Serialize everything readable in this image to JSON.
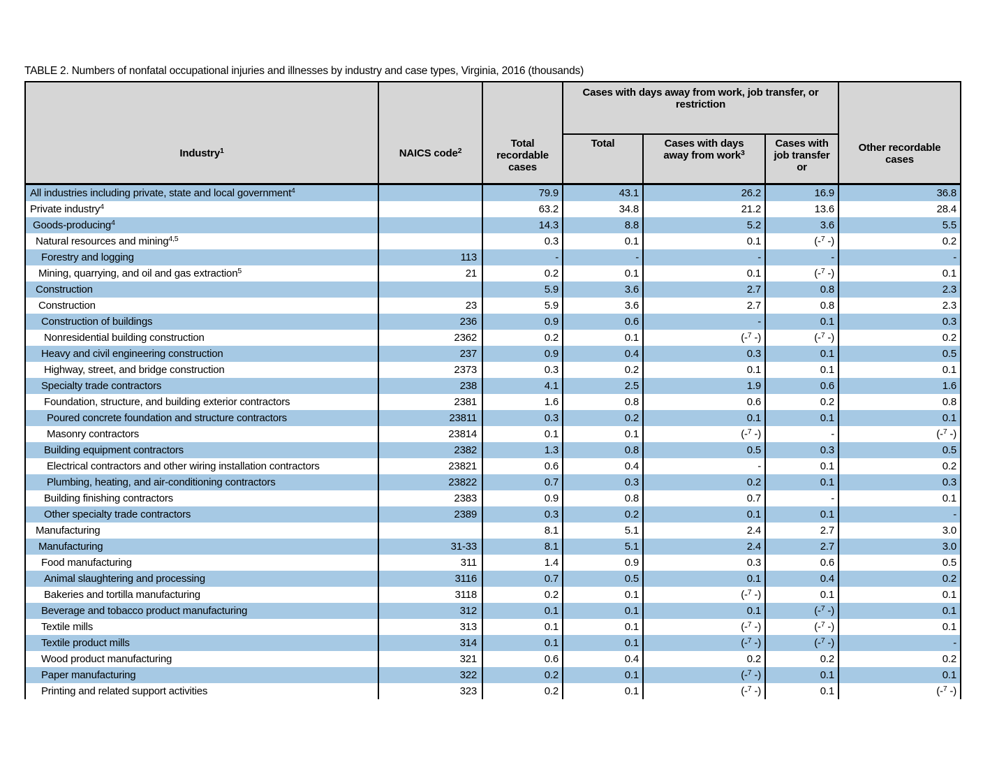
{
  "title": "TABLE 2. Numbers of nonfatal occupational injuries and illnesses by industry and case types, Virginia, 2016 (thousands)",
  "colors": {
    "stripe_blue": "#a6c9e4",
    "header_gray": "#d6d6d6",
    "border": "#000000",
    "background": "#ffffff"
  },
  "table": {
    "columns": {
      "industry": "Industry^{1}",
      "naics": "NAICS code^{2}",
      "total_recordable": "Total recordable cases",
      "group": "Cases with days away from work, job transfer, or restriction",
      "group_sub": [
        "Total",
        "Cases with days away from work^{3}",
        "Cases with job transfer or"
      ],
      "other": "Other recordable cases"
    },
    "rows": [
      {
        "label": "All industries including private, state and local government^{4}",
        "indent": 0,
        "naics": "",
        "values": [
          "79.9",
          "43.1",
          "26.2",
          "16.9",
          "36.8"
        ]
      },
      {
        "label": "Private industry^{4}",
        "indent": 0,
        "naics": "",
        "values": [
          "63.2",
          "34.8",
          "21.2",
          "13.6",
          "28.4"
        ]
      },
      {
        "label": "Goods-producing^{4}",
        "indent": 1,
        "naics": "",
        "values": [
          "14.3",
          "8.8",
          "5.2",
          "3.6",
          "5.5"
        ]
      },
      {
        "label": "Natural resources and mining^{4,5}",
        "indent": 2,
        "naics": "",
        "values": [
          "0.3",
          "0.1",
          "0.1",
          "(-^{7} -)",
          "0.2"
        ]
      },
      {
        "label": "Forestry and logging",
        "indent": 4,
        "naics": "113",
        "values": [
          "-",
          "-",
          "-",
          "-",
          "-"
        ]
      },
      {
        "label": "Mining, quarrying, and oil and gas extraction^{5}",
        "indent": 3,
        "naics": "21",
        "values": [
          "0.2",
          "0.1",
          "0.1",
          "(-^{7} -)",
          "0.1"
        ]
      },
      {
        "label": "Construction",
        "indent": 2,
        "naics": "",
        "values": [
          "5.9",
          "3.6",
          "2.7",
          "0.8",
          "2.3"
        ]
      },
      {
        "label": "Construction",
        "indent": 3,
        "naics": "23",
        "values": [
          "5.9",
          "3.6",
          "2.7",
          "0.8",
          "2.3"
        ]
      },
      {
        "label": "Construction of buildings",
        "indent": 4,
        "naics": "236",
        "values": [
          "0.9",
          "0.6",
          "-",
          "0.1",
          "0.3"
        ]
      },
      {
        "label": "Nonresidential building construction",
        "indent": 5,
        "naics": "2362",
        "values": [
          "0.2",
          "0.1",
          "(-^{7} -)",
          "(-^{7} -)",
          "0.2"
        ]
      },
      {
        "label": "Heavy and civil engineering construction",
        "indent": 4,
        "naics": "237",
        "values": [
          "0.9",
          "0.4",
          "0.3",
          "0.1",
          "0.5"
        ]
      },
      {
        "label": "Highway, street, and bridge construction",
        "indent": 5,
        "naics": "2373",
        "values": [
          "0.3",
          "0.2",
          "0.1",
          "0.1",
          "0.1"
        ]
      },
      {
        "label": "Specialty trade contractors",
        "indent": 4,
        "naics": "238",
        "values": [
          "4.1",
          "2.5",
          "1.9",
          "0.6",
          "1.6"
        ]
      },
      {
        "label": "Foundation, structure, and building exterior contractors",
        "indent": 5,
        "naics": "2381",
        "values": [
          "1.6",
          "0.8",
          "0.6",
          "0.2",
          "0.8"
        ]
      },
      {
        "label": "Poured concrete foundation and structure contractors",
        "indent": 6,
        "naics": "23811",
        "values": [
          "0.3",
          "0.2",
          "0.1",
          "0.1",
          "0.1"
        ]
      },
      {
        "label": "Masonry contractors",
        "indent": 6,
        "naics": "23814",
        "values": [
          "0.1",
          "0.1",
          "(-^{7} -)",
          "-",
          "(-^{7} -)"
        ]
      },
      {
        "label": "Building equipment contractors",
        "indent": 5,
        "naics": "2382",
        "values": [
          "1.3",
          "0.8",
          "0.5",
          "0.3",
          "0.5"
        ]
      },
      {
        "label": "Electrical contractors and other wiring installation contractors",
        "indent": 6,
        "naics": "23821",
        "values": [
          "0.6",
          "0.4",
          "-",
          "0.1",
          "0.2"
        ]
      },
      {
        "label": "Plumbing, heating, and air-conditioning contractors",
        "indent": 6,
        "naics": "23822",
        "values": [
          "0.7",
          "0.3",
          "0.2",
          "0.1",
          "0.3"
        ]
      },
      {
        "label": "Building finishing contractors",
        "indent": 5,
        "naics": "2383",
        "values": [
          "0.9",
          "0.8",
          "0.7",
          "-",
          "0.1"
        ]
      },
      {
        "label": "Other specialty trade contractors",
        "indent": 5,
        "naics": "2389",
        "values": [
          "0.3",
          "0.2",
          "0.1",
          "0.1",
          "-"
        ]
      },
      {
        "label": "Manufacturing",
        "indent": 2,
        "naics": "",
        "values": [
          "8.1",
          "5.1",
          "2.4",
          "2.7",
          "3.0"
        ]
      },
      {
        "label": "Manufacturing",
        "indent": 3,
        "naics": "31-33",
        "values": [
          "8.1",
          "5.1",
          "2.4",
          "2.7",
          "3.0"
        ]
      },
      {
        "label": "Food manufacturing",
        "indent": 4,
        "naics": "311",
        "values": [
          "1.4",
          "0.9",
          "0.3",
          "0.6",
          "0.5"
        ]
      },
      {
        "label": "Animal slaughtering and processing",
        "indent": 5,
        "naics": "3116",
        "values": [
          "0.7",
          "0.5",
          "0.1",
          "0.4",
          "0.2"
        ]
      },
      {
        "label": "Bakeries and tortilla manufacturing",
        "indent": 5,
        "naics": "3118",
        "values": [
          "0.2",
          "0.1",
          "(-^{7} -)",
          "0.1",
          "0.1"
        ]
      },
      {
        "label": "Beverage and tobacco product manufacturing",
        "indent": 4,
        "naics": "312",
        "values": [
          "0.1",
          "0.1",
          "0.1",
          "(-^{7} -)",
          "0.1"
        ]
      },
      {
        "label": "Textile mills",
        "indent": 4,
        "naics": "313",
        "values": [
          "0.1",
          "0.1",
          "(-^{7} -)",
          "(-^{7} -)",
          "0.1"
        ]
      },
      {
        "label": "Textile product mills",
        "indent": 4,
        "naics": "314",
        "values": [
          "0.1",
          "0.1",
          "(-^{7} -)",
          "(-^{7} -)",
          "-"
        ]
      },
      {
        "label": "Wood product manufacturing",
        "indent": 4,
        "naics": "321",
        "values": [
          "0.6",
          "0.4",
          "0.2",
          "0.2",
          "0.2"
        ]
      },
      {
        "label": "Paper manufacturing",
        "indent": 4,
        "naics": "322",
        "values": [
          "0.2",
          "0.1",
          "(-^{7} -)",
          "0.1",
          "0.1"
        ]
      },
      {
        "label": "Printing and related support activities",
        "indent": 4,
        "naics": "323",
        "values": [
          "0.2",
          "0.1",
          "(-^{7} -)",
          "0.1",
          "(-^{7} -)"
        ]
      }
    ]
  }
}
